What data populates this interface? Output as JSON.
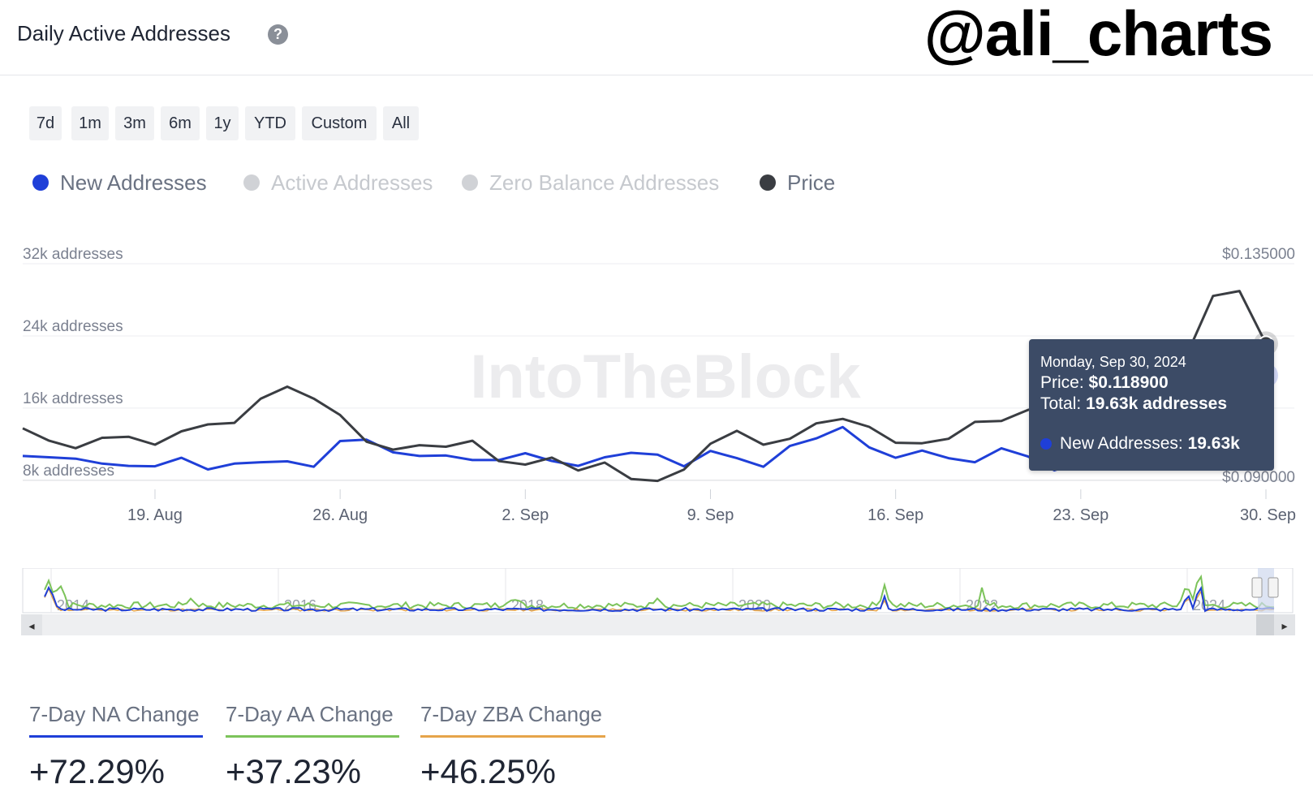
{
  "header": {
    "title": "Daily Active Addresses",
    "help_glyph": "?",
    "watermark_handle": "@ali_charts"
  },
  "range_buttons": [
    "7d",
    "1m",
    "3m",
    "6m",
    "1y",
    "YTD",
    "Custom",
    "All"
  ],
  "legend": [
    {
      "label": "New Addresses",
      "color": "#1f3fd8",
      "active": true
    },
    {
      "label": "Active Addresses",
      "color": "#d0d2d6",
      "active": false
    },
    {
      "label": "Zero Balance Addresses",
      "color": "#d0d2d6",
      "active": false
    },
    {
      "label": "Price",
      "color": "#3a3d42",
      "active": true
    }
  ],
  "chart_watermark": "IntoTheBlock",
  "chart_data": {
    "type": "line",
    "title": "",
    "left_axis": {
      "ticks": [
        8000,
        16000,
        24000,
        32000
      ],
      "labels": [
        "8k addresses",
        "16k addresses",
        "24k addresses",
        "32k addresses"
      ],
      "range": [
        7000,
        32000
      ]
    },
    "right_axis": {
      "ticks": [
        0.09,
        0.135
      ],
      "labels": [
        "$0.090000",
        "$0.135000"
      ],
      "range": [
        0.0895,
        0.135
      ]
    },
    "x_ticks": [
      "19. Aug",
      "26. Aug",
      "2. Sep",
      "9. Sep",
      "16. Sep",
      "23. Sep",
      "30. Sep"
    ],
    "x": [
      "2024-08-14",
      "2024-08-15",
      "2024-08-16",
      "2024-08-17",
      "2024-08-18",
      "2024-08-19",
      "2024-08-20",
      "2024-08-21",
      "2024-08-22",
      "2024-08-23",
      "2024-08-24",
      "2024-08-25",
      "2024-08-26",
      "2024-08-27",
      "2024-08-28",
      "2024-08-29",
      "2024-08-30",
      "2024-08-31",
      "2024-09-01",
      "2024-09-02",
      "2024-09-03",
      "2024-09-04",
      "2024-09-05",
      "2024-09-06",
      "2024-09-07",
      "2024-09-08",
      "2024-09-09",
      "2024-09-10",
      "2024-09-11",
      "2024-09-12",
      "2024-09-13",
      "2024-09-14",
      "2024-09-15",
      "2024-09-16",
      "2024-09-17",
      "2024-09-18",
      "2024-09-19",
      "2024-09-20",
      "2024-09-21",
      "2024-09-22",
      "2024-09-23",
      "2024-09-24",
      "2024-09-25",
      "2024-09-26",
      "2024-09-27",
      "2024-09-28",
      "2024-09-29",
      "2024-09-30"
    ],
    "series": [
      {
        "name": "New Addresses",
        "axis": "left",
        "color": "#1f3fd8",
        "values": [
          10700,
          10550,
          10400,
          9850,
          9600,
          9550,
          10500,
          9200,
          9850,
          10000,
          10100,
          9500,
          12350,
          12500,
          11100,
          10700,
          10750,
          10250,
          10250,
          11000,
          10150,
          9600,
          10550,
          11050,
          10850,
          9550,
          11250,
          10450,
          9500,
          11800,
          12650,
          13900,
          11650,
          10500,
          11300,
          10450,
          10000,
          11550,
          10650,
          9100,
          10050,
          11700,
          11200,
          10800,
          11600,
          12300,
          13950,
          19630
        ]
      },
      {
        "name": "Price",
        "axis": "right",
        "color": "#3a3d42",
        "values": [
          0.1018,
          0.0993,
          0.0978,
          0.0999,
          0.1001,
          0.0985,
          0.1012,
          0.1026,
          0.1029,
          0.1078,
          0.1102,
          0.1078,
          0.1045,
          0.0991,
          0.0975,
          0.0984,
          0.0981,
          0.0993,
          0.0952,
          0.0945,
          0.0959,
          0.0933,
          0.0949,
          0.0916,
          0.0912,
          0.0935,
          0.0987,
          0.1013,
          0.0985,
          0.0997,
          0.1028,
          0.1037,
          0.1021,
          0.0989,
          0.0988,
          0.0997,
          0.1031,
          0.1033,
          0.1055,
          0.1067,
          0.1083,
          0.1096,
          0.1115,
          0.1138,
          0.1165,
          0.1285,
          0.1295,
          0.1189
        ]
      }
    ],
    "grid": true
  },
  "tooltip": {
    "date": "Monday, Sep 30, 2024",
    "price_label": "Price: ",
    "price_value": "$0.118900",
    "total_label": "Total: ",
    "total_value": "19.63k addresses",
    "na_label": "New Addresses: ",
    "na_value": "19.63k"
  },
  "navigator": {
    "year_labels": [
      "2014",
      "2016",
      "2018",
      "2020",
      "2022",
      "2024"
    ],
    "left_arrow": "◂",
    "right_arrow": "▸"
  },
  "stats": [
    {
      "label": "7-Day NA Change",
      "value": "+72.29%",
      "color": "#1f3fd8"
    },
    {
      "label": "7-Day AA Change",
      "value": "+37.23%",
      "color": "#7cc35a"
    },
    {
      "label": "7-Day ZBA Change",
      "value": "+46.25%",
      "color": "#e6a44a"
    }
  ]
}
